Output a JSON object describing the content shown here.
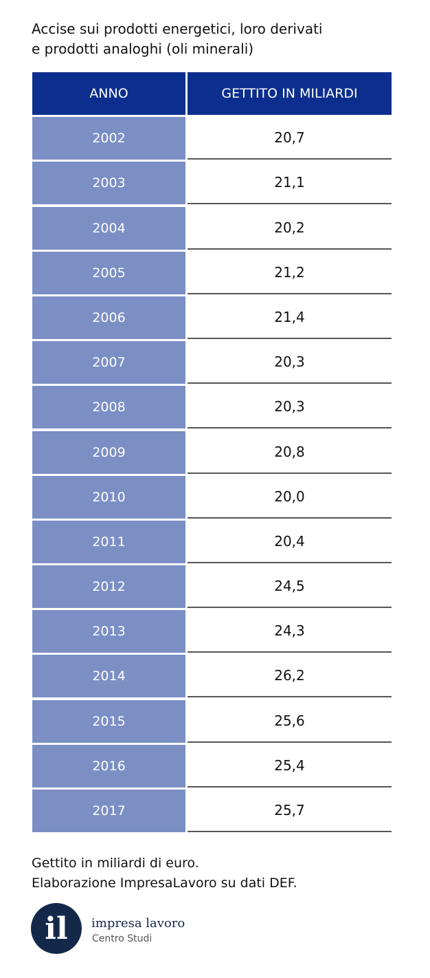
{
  "header": {
    "title": [
      "Accise sui prodotti energetici, loro derivati",
      "e prodotti analoghi (oli minerali)"
    ]
  },
  "table": {
    "columns": [
      "ANNO",
      "GETTITO IN MILIARDI"
    ],
    "rows": [
      [
        "2002",
        "20,7"
      ],
      [
        "2003",
        "21,1"
      ],
      [
        "2004",
        "20,2"
      ],
      [
        "2005",
        "21,2"
      ],
      [
        "2006",
        "21,4"
      ],
      [
        "2007",
        "20,3"
      ],
      [
        "2008",
        "20,3"
      ],
      [
        "2009",
        "20,8"
      ],
      [
        "2010",
        "20,0"
      ],
      [
        "2011",
        "20,4"
      ],
      [
        "2012",
        "24,5"
      ],
      [
        "2013",
        "24,3"
      ],
      [
        "2014",
        "26,2"
      ],
      [
        "2015",
        "25,6"
      ],
      [
        "2016",
        "25,4"
      ],
      [
        "2017",
        "25,7"
      ]
    ]
  },
  "footer": {
    "notes": [
      "Gettito in miliardi di euro.",
      "Elaborazione ImpresaLavoro su dati DEF."
    ],
    "logo": {
      "mark": "il",
      "name": "impresa lavoro",
      "subtitle": "Centro Studi"
    }
  }
}
